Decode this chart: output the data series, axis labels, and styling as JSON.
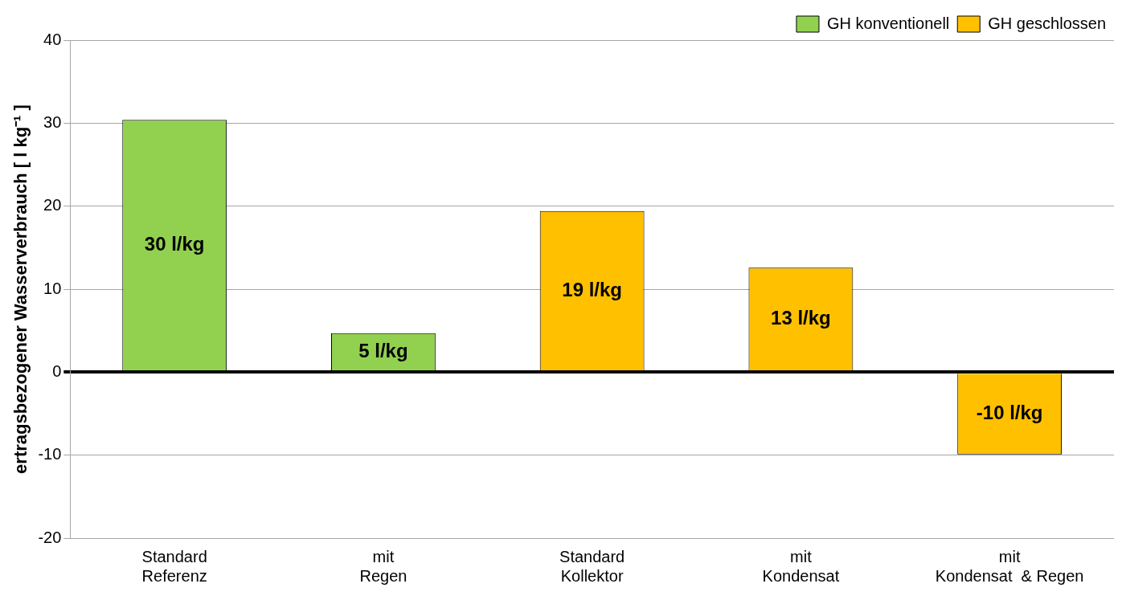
{
  "chart_data": {
    "type": "bar",
    "ylabel": "ertragsbezogener Wasserverbrauch [ l kg⁻¹ ]",
    "categories": [
      "Standard\nReferenz",
      "mit\nRegen",
      "Standard\nKollektor",
      "mit\nKondensat",
      "mit\nKondensat  & Regen"
    ],
    "series": [
      {
        "name": "GH konventionell",
        "color": "#92d050",
        "values": [
          30.4,
          4.7,
          null,
          null,
          null
        ],
        "value_labels": [
          "30 l/kg",
          "5 l/kg",
          null,
          null,
          null
        ]
      },
      {
        "name": "GH geschlossen",
        "color": "#ffc000",
        "values": [
          null,
          null,
          19.4,
          12.6,
          -9.9
        ],
        "value_labels": [
          null,
          null,
          "19 l/kg",
          "13 l/kg",
          "-10 l/kg"
        ]
      }
    ],
    "ylim": [
      -20,
      40
    ],
    "yticks": [
      -20,
      -10,
      0,
      10,
      20,
      30,
      40
    ],
    "grid": "y",
    "legend": "top right"
  }
}
